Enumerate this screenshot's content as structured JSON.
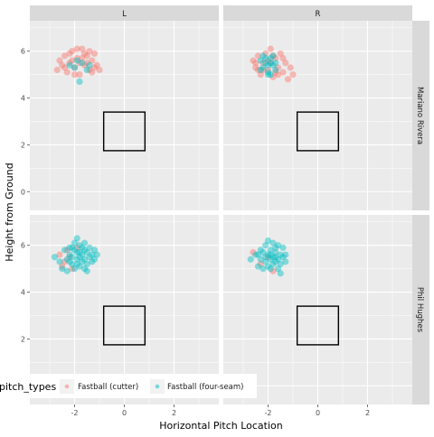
{
  "chart_data": {
    "type": "scatter",
    "facet_columns": [
      "L",
      "R"
    ],
    "facet_rows": [
      "Mariano Rivera",
      "Phil Hughes"
    ],
    "xlabel": "Horizontal Pitch Location",
    "ylabel": "Height from Ground",
    "xlim": [
      -3.8,
      3.8
    ],
    "ylim": [
      -0.8,
      7.3
    ],
    "xticks": [
      -2,
      0,
      2
    ],
    "yticks": [
      0,
      2,
      4,
      6
    ],
    "xtick_labels": [
      "-2",
      "0",
      "2"
    ],
    "ytick_labels": [
      "0",
      "2",
      "4",
      "6"
    ],
    "strike_zone": {
      "x": [
        -0.83,
        0.83
      ],
      "z": [
        1.75,
        3.4
      ]
    },
    "grid": true,
    "legend": {
      "title": "pitch_types",
      "position": "bottom-left, overlapping the lower panels",
      "entries": [
        {
          "label": "Fastball (cutter)",
          "color": "#F8766D"
        },
        {
          "label": "Fastball (four-seam)",
          "color": "#00BFC4"
        }
      ]
    },
    "panels": [
      {
        "row": "Mariano Rivera",
        "col": "L",
        "series": [
          {
            "name": "Fastball (cutter)",
            "color": "#F8766D",
            "points": [
              [
                -2.6,
                5.6
              ],
              [
                -2.5,
                5.4
              ],
              [
                -2.4,
                5.8
              ],
              [
                -2.3,
                5.1
              ],
              [
                -2.2,
                5.5
              ],
              [
                -2.1,
                6.0
              ],
              [
                -2.0,
                5.3
              ],
              [
                -1.9,
                5.7
              ],
              [
                -1.8,
                5.0
              ],
              [
                -1.7,
                6.1
              ],
              [
                -1.6,
                5.4
              ],
              [
                -1.5,
                5.8
              ],
              [
                -1.4,
                5.2
              ],
              [
                -1.3,
                5.6
              ],
              [
                -1.2,
                5.9
              ],
              [
                -1.1,
                5.4
              ],
              [
                -1.0,
                5.2
              ],
              [
                -2.2,
                5.9
              ],
              [
                -1.9,
                6.1
              ],
              [
                -1.6,
                5.9
              ],
              [
                -2.4,
                5.3
              ],
              [
                -1.8,
                5.5
              ],
              [
                -1.5,
                5.5
              ],
              [
                -2.0,
                5.0
              ],
              [
                -1.3,
                5.1
              ],
              [
                -2.7,
                5.2
              ],
              [
                -1.2,
                5.3
              ],
              [
                -1.7,
                5.7
              ],
              [
                -2.1,
                5.6
              ],
              [
                -1.4,
                6.0
              ]
            ]
          },
          {
            "name": "Fastball (four-seam)",
            "color": "#00BFC4",
            "points": [
              [
                -2.0,
                5.3
              ],
              [
                -1.7,
                5.5
              ],
              [
                -1.5,
                5.2
              ],
              [
                -2.2,
                5.4
              ],
              [
                -1.9,
                5.6
              ],
              [
                -1.8,
                4.7
              ],
              [
                -1.4,
                5.4
              ]
            ]
          }
        ]
      },
      {
        "row": "Mariano Rivera",
        "col": "R",
        "series": [
          {
            "name": "Fastball (cutter)",
            "color": "#F8766D",
            "points": [
              [
                -2.6,
                5.6
              ],
              [
                -2.5,
                5.3
              ],
              [
                -2.4,
                5.8
              ],
              [
                -2.3,
                5.0
              ],
              [
                -2.2,
                5.5
              ],
              [
                -2.1,
                5.9
              ],
              [
                -2.0,
                5.2
              ],
              [
                -1.9,
                6.1
              ],
              [
                -1.8,
                4.9
              ],
              [
                -1.7,
                5.7
              ],
              [
                -1.6,
                5.3
              ],
              [
                -1.5,
                5.9
              ],
              [
                -1.4,
                5.1
              ],
              [
                -1.3,
                5.5
              ],
              [
                -1.2,
                4.8
              ],
              [
                -1.1,
                5.3
              ],
              [
                -1.0,
                5.0
              ],
              [
                -2.4,
                5.2
              ],
              [
                -1.9,
                5.5
              ],
              [
                -1.6,
                5.0
              ],
              [
                -2.2,
                5.2
              ],
              [
                -1.8,
                5.8
              ],
              [
                -1.4,
                5.7
              ],
              [
                -2.0,
                5.6
              ],
              [
                -2.5,
                5.5
              ],
              [
                -1.7,
                5.1
              ]
            ]
          },
          {
            "name": "Fastball (four-seam)",
            "color": "#00BFC4",
            "points": [
              [
                -2.3,
                5.6
              ],
              [
                -2.2,
                5.3
              ],
              [
                -2.1,
                5.7
              ],
              [
                -2.0,
                5.1
              ],
              [
                -1.9,
                5.5
              ],
              [
                -1.8,
                5.8
              ],
              [
                -1.7,
                5.2
              ],
              [
                -2.1,
                5.5
              ],
              [
                -2.0,
                5.4
              ],
              [
                -1.9,
                5.0
              ],
              [
                -2.3,
                5.2
              ],
              [
                -1.8,
                5.4
              ],
              [
                -2.2,
                5.8
              ],
              [
                -1.9,
                5.7
              ],
              [
                -2.0,
                5.0
              ],
              [
                -1.7,
                5.5
              ]
            ]
          }
        ]
      },
      {
        "row": "Phil Hughes",
        "col": "L",
        "series": [
          {
            "name": "Fastball (cutter)",
            "color": "#F8766D",
            "points": [
              [
                -2.6,
                5.6
              ],
              [
                -2.4,
                5.3
              ],
              [
                -2.3,
                5.8
              ],
              [
                -2.1,
                5.0
              ],
              [
                -2.5,
                5.1
              ],
              [
                -2.2,
                5.5
              ],
              [
                -1.9,
                5.9
              ]
            ]
          },
          {
            "name": "Fastball (four-seam)",
            "color": "#00BFC4",
            "points": [
              [
                -2.8,
                5.5
              ],
              [
                -2.6,
                5.3
              ],
              [
                -2.5,
                5.0
              ],
              [
                -2.4,
                5.8
              ],
              [
                -2.3,
                5.4
              ],
              [
                -2.3,
                4.9
              ],
              [
                -2.2,
                5.6
              ],
              [
                -2.2,
                5.9
              ],
              [
                -2.1,
                5.2
              ],
              [
                -2.1,
                5.5
              ],
              [
                -2.0,
                5.8
              ],
              [
                -2.0,
                6.1
              ],
              [
                -2.0,
                5.0
              ],
              [
                -1.9,
                5.4
              ],
              [
                -1.9,
                5.7
              ],
              [
                -1.9,
                6.3
              ],
              [
                -1.8,
                5.1
              ],
              [
                -1.8,
                5.5
              ],
              [
                -1.8,
                6.0
              ],
              [
                -1.7,
                5.3
              ],
              [
                -1.7,
                5.6
              ],
              [
                -1.7,
                5.9
              ],
              [
                -1.6,
                5.0
              ],
              [
                -1.6,
                5.4
              ],
              [
                -1.6,
                6.1
              ],
              [
                -1.5,
                5.7
              ],
              [
                -1.5,
                5.2
              ],
              [
                -1.4,
                5.5
              ],
              [
                -1.4,
                5.9
              ],
              [
                -1.3,
                5.3
              ],
              [
                -1.3,
                5.6
              ],
              [
                -1.2,
                5.4
              ],
              [
                -1.2,
                5.8
              ],
              [
                -1.1,
                5.6
              ],
              [
                -1.5,
                4.9
              ],
              [
                -2.2,
                5.3
              ],
              [
                -1.9,
                5.2
              ],
              [
                -1.6,
                5.8
              ],
              [
                -2.1,
                5.9
              ],
              [
                -1.8,
                5.7
              ]
            ]
          }
        ]
      },
      {
        "row": "Phil Hughes",
        "col": "R",
        "series": [
          {
            "name": "Fastball (cutter)",
            "color": "#F8766D",
            "points": [
              [
                -2.6,
                5.7
              ],
              [
                -2.3,
                5.2
              ],
              [
                -2.0,
                5.5
              ],
              [
                -1.8,
                4.9
              ]
            ]
          },
          {
            "name": "Fastball (four-seam)",
            "color": "#00BFC4",
            "points": [
              [
                -2.7,
                5.4
              ],
              [
                -2.5,
                5.6
              ],
              [
                -2.4,
                5.1
              ],
              [
                -2.3,
                5.8
              ],
              [
                -2.3,
                5.4
              ],
              [
                -2.2,
                5.0
              ],
              [
                -2.2,
                5.7
              ],
              [
                -2.1,
                5.3
              ],
              [
                -2.1,
                6.0
              ],
              [
                -2.0,
                5.6
              ],
              [
                -2.0,
                5.1
              ],
              [
                -2.0,
                6.2
              ],
              [
                -1.9,
                5.4
              ],
              [
                -1.9,
                5.8
              ],
              [
                -1.9,
                5.0
              ],
              [
                -1.8,
                5.5
              ],
              [
                -1.8,
                6.1
              ],
              [
                -1.8,
                5.2
              ],
              [
                -1.7,
                5.7
              ],
              [
                -1.7,
                5.3
              ],
              [
                -1.7,
                5.9
              ],
              [
                -1.6,
                5.4
              ],
              [
                -1.6,
                5.0
              ],
              [
                -1.6,
                6.0
              ],
              [
                -1.5,
                5.6
              ],
              [
                -1.5,
                5.2
              ],
              [
                -1.5,
                4.8
              ],
              [
                -1.4,
                5.5
              ],
              [
                -1.4,
                5.9
              ],
              [
                -1.3,
                5.3
              ],
              [
                -1.3,
                5.6
              ],
              [
                -2.4,
                5.6
              ],
              [
                -2.1,
                5.5
              ],
              [
                -1.9,
                5.6
              ],
              [
                -1.7,
                5.5
              ]
            ]
          }
        ]
      }
    ]
  }
}
